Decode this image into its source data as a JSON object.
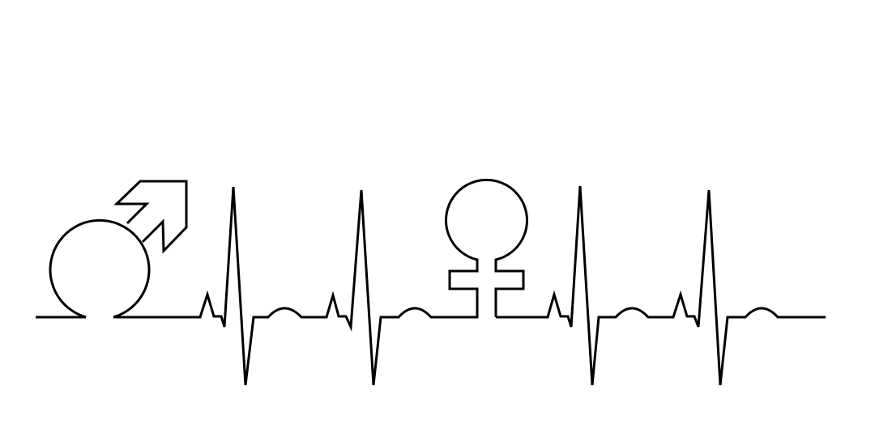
{
  "image": {
    "background_color": "#ffffff",
    "line_color": "#000000",
    "elements": [
      {
        "id": "male-symbol",
        "kind": "icon",
        "icon_name": "male-symbol-icon"
      },
      {
        "id": "heartbeat",
        "kind": "line",
        "icon_name": "ecg-heartbeat-line"
      },
      {
        "id": "female-symbol",
        "kind": "icon",
        "icon_name": "female-symbol-icon"
      }
    ]
  }
}
